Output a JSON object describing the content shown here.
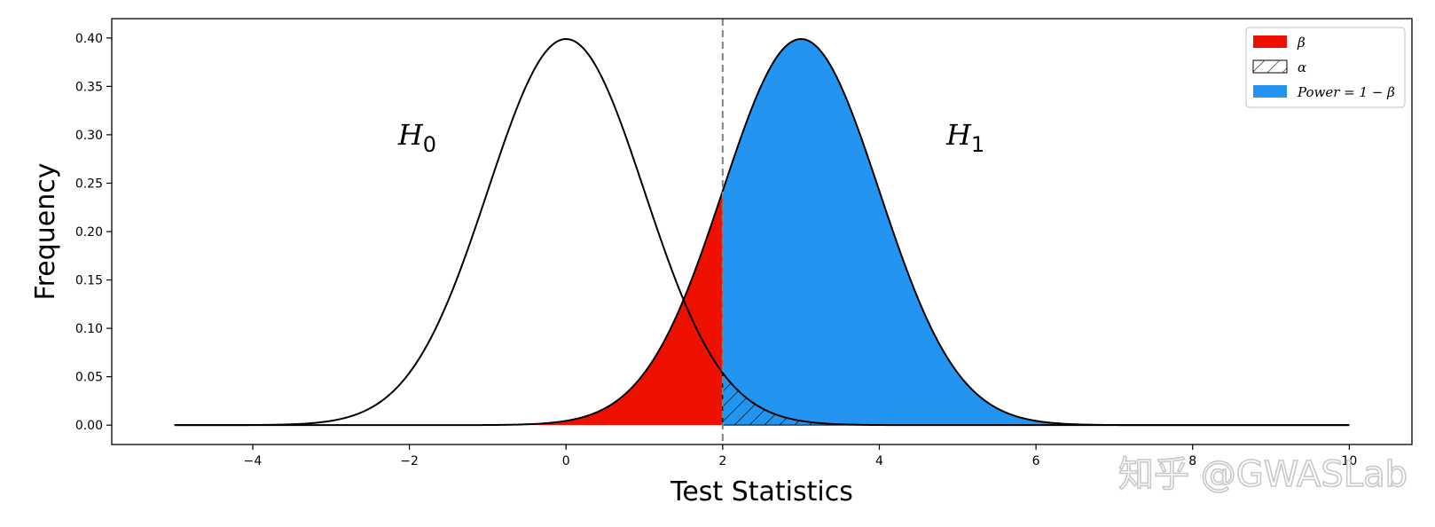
{
  "chart_data": {
    "type": "area",
    "title": "",
    "xlabel": "Test Statistics",
    "ylabel": "Frequency",
    "xlim": [
      -5.8,
      10.8
    ],
    "ylim": [
      -0.02,
      0.42
    ],
    "x_range_plotted": [
      -5,
      10
    ],
    "x_ticks": [
      -4,
      -2,
      0,
      2,
      4,
      6,
      8,
      10
    ],
    "x_tick_labels": [
      "−4",
      "−2",
      "0",
      "2",
      "4",
      "6",
      "8",
      "10"
    ],
    "y_ticks": [
      0.0,
      0.05,
      0.1,
      0.15,
      0.2,
      0.25,
      0.3,
      0.35,
      0.4
    ],
    "y_tick_labels": [
      "0.00",
      "0.05",
      "0.10",
      "0.15",
      "0.20",
      "0.25",
      "0.30",
      "0.35",
      "0.40"
    ],
    "grid": false,
    "critical_value": 2,
    "distributions": [
      {
        "id": "H0",
        "label_main": "H",
        "label_sub": "0",
        "mean": 0,
        "sd": 1,
        "label_x": -1.9,
        "label_y": 0.3
      },
      {
        "id": "H1",
        "label_main": "H",
        "label_sub": "1",
        "mean": 3,
        "sd": 1,
        "label_x": 5.1,
        "label_y": 0.3
      }
    ],
    "legend": {
      "position": "top-right",
      "entries": [
        {
          "label": "β",
          "color": "#ee1100",
          "style": "solid"
        },
        {
          "label": "α",
          "color": "#ffffff",
          "style": "hatch"
        },
        {
          "label": "Power = 1 − β",
          "color": "#2394f0",
          "style": "solid"
        }
      ]
    },
    "colors": {
      "beta": "#ee1100",
      "power": "#2394f0",
      "curve": "#000000",
      "critical_line": "#808080"
    }
  },
  "watermark": "知乎 @GWASLab"
}
